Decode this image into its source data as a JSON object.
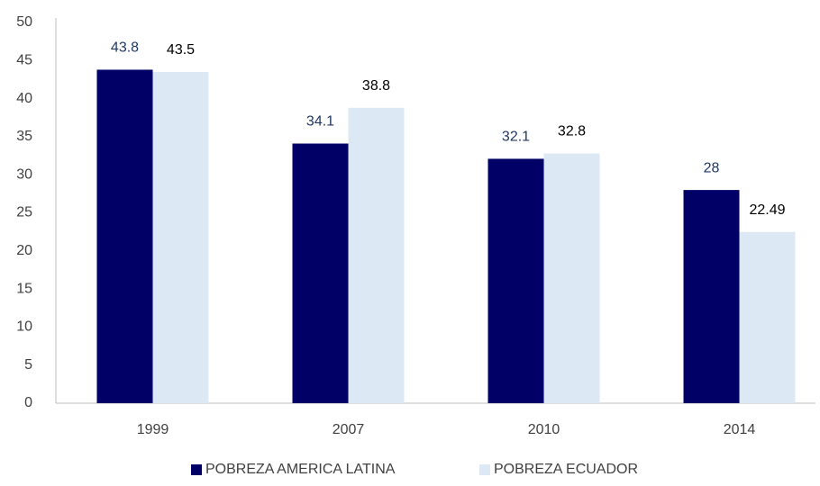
{
  "chart_data": {
    "type": "bar",
    "categories": [
      "1999",
      "2007",
      "2010",
      "2014"
    ],
    "series": [
      {
        "name": "POBREZA AMERICA LATINA",
        "color": "#000066",
        "label_color": "#1f3864",
        "values": [
          43.8,
          34.1,
          32.1,
          28
        ]
      },
      {
        "name": "POBREZA ECUADOR",
        "color": "#dde8f5",
        "label_color": "#000000",
        "values": [
          43.5,
          38.8,
          32.8,
          22.49
        ]
      }
    ],
    "ylim": [
      0,
      50
    ],
    "yticks": [
      0,
      5,
      10,
      15,
      20,
      25,
      30,
      35,
      40,
      45,
      50
    ],
    "grid": false,
    "legend": "bottom"
  }
}
